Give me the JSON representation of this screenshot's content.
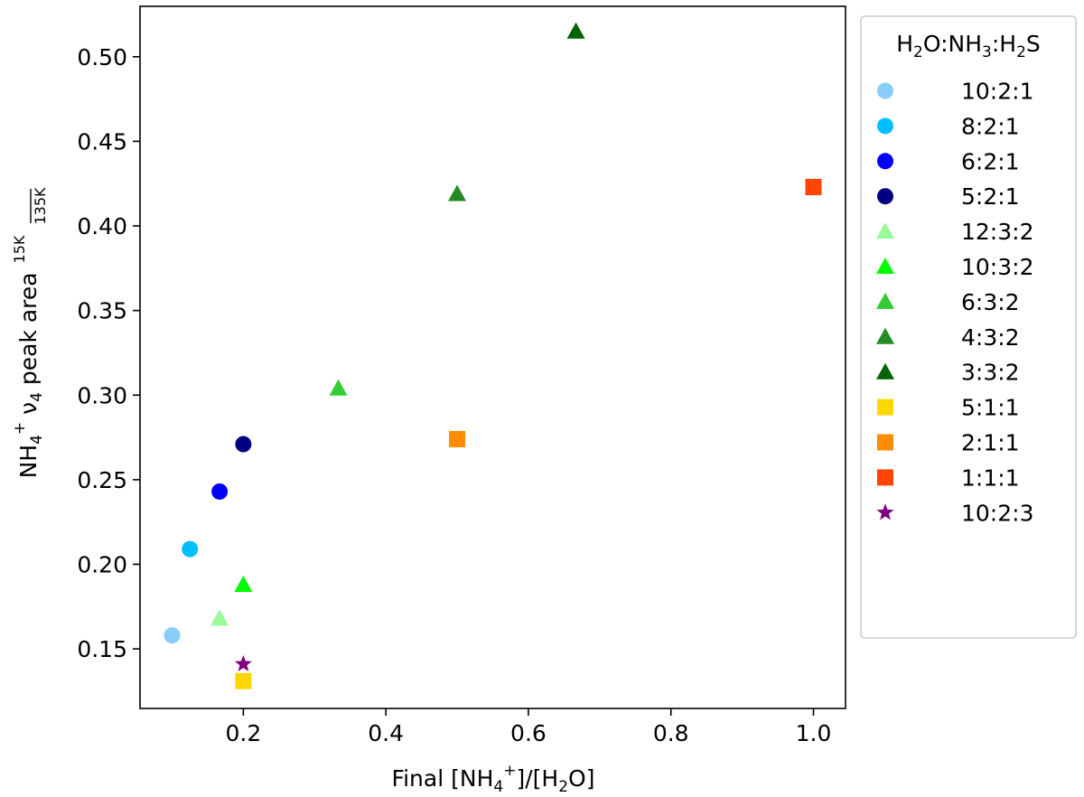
{
  "chart_data": {
    "type": "scatter",
    "title": "",
    "xlabel": {
      "a": "Final [NH",
      "sub": "4",
      "sup": "+",
      "b": "]/[H",
      "sub2": "2",
      "c": "O]"
    },
    "ylabel": {
      "a": "NH",
      "sub": "4",
      "sup": "+",
      "b": " ν",
      "sub2": "4",
      "c": " peak area ",
      "frac_num": "15K",
      "frac_den": "135K"
    },
    "xlim": [
      0.055,
      1.045
    ],
    "ylim": [
      0.1148,
      0.5298
    ],
    "xticks": [
      0.2,
      0.4,
      0.6,
      0.8,
      1.0
    ],
    "xtick_labels": [
      "0.2",
      "0.4",
      "0.6",
      "0.8",
      "1.0"
    ],
    "yticks": [
      0.15,
      0.2,
      0.25,
      0.3,
      0.35,
      0.4,
      0.45,
      0.5
    ],
    "ytick_labels": [
      "0.15",
      "0.20",
      "0.25",
      "0.30",
      "0.35",
      "0.40",
      "0.45",
      "0.50"
    ],
    "grid": false,
    "legend": {
      "placement": "outside-right",
      "title": {
        "a": "H",
        "s1": "2",
        "b": "O:NH",
        "s2": "3",
        "c": ":H",
        "s3": "2",
        "d": "S"
      }
    },
    "series": [
      {
        "name": "10:2:1",
        "marker": "circle",
        "color": "#87cefa",
        "x": 0.1,
        "y": 0.158
      },
      {
        "name": "8:2:1",
        "marker": "circle",
        "color": "#00bfff",
        "x": 0.125,
        "y": 0.209
      },
      {
        "name": "6:2:1",
        "marker": "circle",
        "color": "#0000ff",
        "x": 0.1667,
        "y": 0.243
      },
      {
        "name": "5:2:1",
        "marker": "circle",
        "color": "#000080",
        "x": 0.2,
        "y": 0.271
      },
      {
        "name": "12:3:2",
        "marker": "triangle",
        "color": "#98fb98",
        "x": 0.1667,
        "y": 0.168
      },
      {
        "name": "10:3:2",
        "marker": "triangle",
        "color": "#00ff00",
        "x": 0.2,
        "y": 0.188
      },
      {
        "name": "6:3:2",
        "marker": "triangle",
        "color": "#32cd32",
        "x": 0.3333,
        "y": 0.304
      },
      {
        "name": "4:3:2",
        "marker": "triangle",
        "color": "#228b22",
        "x": 0.5,
        "y": 0.419
      },
      {
        "name": "3:3:2",
        "marker": "triangle",
        "color": "#006400",
        "x": 0.6667,
        "y": 0.515
      },
      {
        "name": "5:1:1",
        "marker": "square",
        "color": "#ffd700",
        "x": 0.2,
        "y": 0.131
      },
      {
        "name": "2:1:1",
        "marker": "square",
        "color": "#ff8c00",
        "x": 0.5,
        "y": 0.274
      },
      {
        "name": "1:1:1",
        "marker": "square",
        "color": "#ff4500",
        "x": 1.0,
        "y": 0.423
      },
      {
        "name": "10:2:3",
        "marker": "star",
        "color": "#800080",
        "x": 0.2,
        "y": 0.141
      }
    ]
  }
}
